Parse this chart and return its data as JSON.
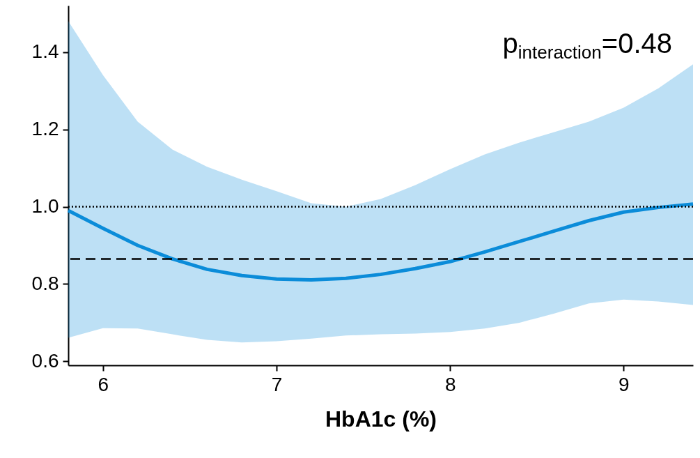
{
  "chart_data": {
    "type": "line",
    "xlabel": "HbA1c (%)",
    "x": [
      5.8,
      6.0,
      6.2,
      6.4,
      6.6,
      6.8,
      7.0,
      7.2,
      7.4,
      7.6,
      7.8,
      8.0,
      8.2,
      8.4,
      8.6,
      8.8,
      9.0,
      9.2,
      9.4
    ],
    "series": [
      {
        "color": "#0b8cd9",
        "values": [
          0.99,
          0.944,
          0.9,
          0.865,
          0.838,
          0.822,
          0.813,
          0.811,
          0.815,
          0.825,
          0.84,
          0.858,
          0.883,
          0.91,
          0.937,
          0.964,
          0.986,
          0.998,
          1.007
        ],
        "lower": [
          0.661,
          0.686,
          0.685,
          0.67,
          0.656,
          0.649,
          0.652,
          0.659,
          0.667,
          0.67,
          0.672,
          0.676,
          0.685,
          0.7,
          0.724,
          0.75,
          0.76,
          0.755,
          0.746
        ],
        "upper": [
          1.48,
          1.34,
          1.22,
          1.148,
          1.103,
          1.07,
          1.04,
          1.009,
          1.0,
          1.02,
          1.056,
          1.097,
          1.135,
          1.166,
          1.193,
          1.22,
          1.256,
          1.306,
          1.368
        ]
      }
    ],
    "xlim": [
      5.8,
      9.4
    ],
    "xticks": [
      6,
      7,
      8,
      9
    ],
    "ylim": [
      0.59,
      1.52
    ],
    "yticks": [
      0.6,
      0.8,
      {
        "value": 1,
        "label": "1.0"
      },
      1.2,
      1.4
    ],
    "grid": false,
    "line_style": "solid",
    "marker": "none",
    "ref_lines": [
      {
        "axis": "y",
        "value": 1.0,
        "line_style": "dotted",
        "color": "#000000"
      },
      {
        "axis": "y",
        "value": 0.865,
        "line_style": "dashed",
        "color": "#000000"
      }
    ],
    "annotations": [
      "p$_{interaction}$=0.48"
    ]
  }
}
